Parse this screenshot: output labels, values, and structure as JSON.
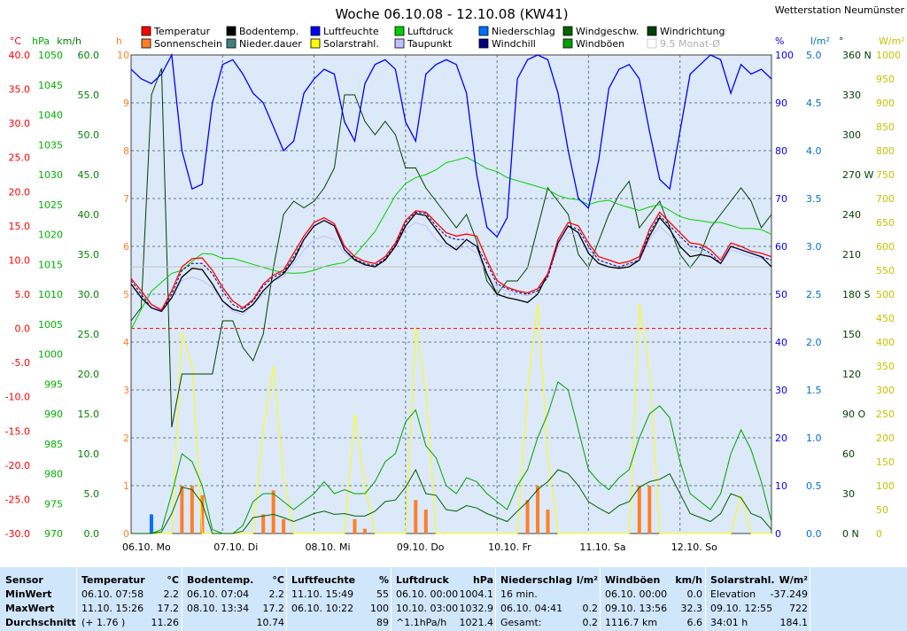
{
  "station": "Wetterstation Neumünster",
  "chart_data": {
    "type": "line",
    "title": "Woche 06.10.08 - 12.10.08 (KW41)",
    "legend": [
      {
        "name": "Temperatur",
        "color": "#ff0000"
      },
      {
        "name": "Bodentemp.",
        "color": "#000000"
      },
      {
        "name": "Luftfeuchte",
        "color": "#0000ff"
      },
      {
        "name": "Luftdruck",
        "color": "#00d000"
      },
      {
        "name": "Niederschlag",
        "color": "#0070ff"
      },
      {
        "name": "Windgeschw.",
        "color": "#006400"
      },
      {
        "name": "Windrichtung",
        "color": "#004000"
      },
      {
        "name": "Sonnenschein",
        "color": "#ff7f27"
      },
      {
        "name": "Nieder.dauer",
        "color": "#408080"
      },
      {
        "name": "Solarstrahl.",
        "color": "#ffff00"
      },
      {
        "name": "Taupunkt",
        "color": "#c0c0ff"
      },
      {
        "name": "Windchill",
        "color": "#000080"
      },
      {
        "name": "Windböen",
        "color": "#00a000"
      },
      {
        "name": "9.5 Monat-Ø",
        "color": "#c0c0c0"
      }
    ],
    "days": [
      "06.10. Mo",
      "07.10. Di",
      "08.10. Mi",
      "09.10. Do",
      "10.10. Fr",
      "11.10. Sa",
      "12.10. So"
    ],
    "axes": {
      "temp": {
        "unit": "°C",
        "range": [
          -30,
          40
        ],
        "ticks": [
          "40.0",
          "35.0",
          "30.0",
          "25.0",
          "20.0",
          "15.0",
          "10.0",
          "5.0",
          "0.0",
          "-5.0",
          "-10.0",
          "-15.0",
          "-20.0",
          "-25.0",
          "-30.0"
        ]
      },
      "pressure": {
        "unit": "hPa",
        "range": [
          970,
          1050
        ],
        "ticks": [
          "1050",
          "1045",
          "1040",
          "1035",
          "1030",
          "1025",
          "1020",
          "1015",
          "1010",
          "1005",
          "1000",
          "995",
          "990",
          "985",
          "980",
          "975",
          "970"
        ]
      },
      "wind": {
        "unit": "km/h",
        "range": [
          0,
          60
        ],
        "ticks": [
          "60.0",
          "55.0",
          "50.0",
          "45.0",
          "40.0",
          "35.0",
          "30.0",
          "25.0",
          "20.0",
          "15.0",
          "10.0",
          "5.0",
          "0.0"
        ]
      },
      "hours": {
        "unit": "h",
        "range": [
          0,
          10
        ],
        "ticks": [
          "10",
          "9",
          "8",
          "7",
          "6",
          "5",
          "4",
          "3",
          "2",
          "1",
          "0"
        ]
      },
      "humidity": {
        "unit": "%",
        "range": [
          0,
          100
        ],
        "ticks": [
          "100",
          "90",
          "80",
          "70",
          "60",
          "50",
          "40",
          "30",
          "20",
          "10",
          "0"
        ]
      },
      "rain": {
        "unit": "l/m²",
        "range": [
          0,
          5
        ],
        "ticks": [
          "5.0",
          "4.5",
          "4.0",
          "3.5",
          "3.0",
          "2.5",
          "2.0",
          "1.5",
          "1.0",
          "0.5",
          "0.0"
        ]
      },
      "direction": {
        "unit": "°",
        "range": [
          0,
          360
        ],
        "ticks": [
          "360 N",
          "330",
          "300",
          "270 W",
          "240",
          "210",
          "180 S",
          "150",
          "120",
          "90 O",
          "60",
          "30",
          "0 N"
        ]
      },
      "solar": {
        "unit": "W/m²",
        "range": [
          0,
          1000
        ],
        "ticks": [
          "1000",
          "950",
          "900",
          "850",
          "800",
          "750",
          "700",
          "650",
          "600",
          "550",
          "500",
          "450",
          "400",
          "350",
          "300",
          "250",
          "200",
          "150",
          "100",
          "50",
          "0"
        ]
      }
    },
    "series": [
      {
        "name": "Temperatur",
        "axis": "temp",
        "values": [
          7.3,
          5.5,
          3.5,
          2.7,
          5.5,
          9.0,
          10.2,
          10.3,
          8.5,
          6.0,
          4.0,
          3.0,
          4.2,
          6.5,
          7.8,
          8.5,
          11.0,
          13.5,
          15.5,
          16.2,
          15.3,
          12.0,
          10.5,
          9.8,
          9.5,
          10.5,
          12.5,
          15.8,
          17.2,
          17.0,
          15.5,
          14.0,
          13.5,
          13.8,
          13.5,
          10.0,
          7.0,
          6.0,
          5.5,
          5.2,
          5.8,
          8.0,
          13.0,
          15.5,
          15.0,
          12.5,
          10.5,
          10.0,
          9.5,
          9.8,
          10.5,
          14.5,
          17.0,
          15.5,
          14.0,
          12.5,
          12.3,
          11.5,
          10.0,
          12.5,
          12.0,
          11.3,
          11.0,
          10.5
        ]
      },
      {
        "name": "Bodentemp.",
        "axis": "temp",
        "values": [
          6.5,
          4.5,
          3.0,
          2.5,
          4.5,
          7.5,
          8.8,
          8.6,
          6.5,
          4.0,
          2.8,
          2.4,
          3.5,
          5.5,
          7.0,
          8.0,
          10.0,
          13.0,
          15.0,
          15.8,
          15.0,
          11.5,
          10.0,
          9.3,
          9.0,
          10.0,
          12.0,
          15.0,
          16.8,
          16.5,
          14.5,
          12.5,
          11.5,
          13.0,
          12.0,
          8.0,
          5.0,
          4.5,
          4.2,
          3.8,
          5.0,
          8.0,
          12.5,
          15.0,
          14.0,
          11.0,
          9.5,
          9.0,
          8.8,
          9.0,
          10.0,
          13.5,
          16.2,
          14.5,
          12.0,
          10.5,
          10.8,
          10.5,
          9.5,
          12.0,
          11.5,
          11.0,
          10.5,
          9.0
        ]
      },
      {
        "name": "Taupunkt",
        "axis": "temp",
        "values": [
          6.0,
          5.0,
          3.5,
          2.5,
          4.5,
          7.0,
          7.5,
          7.0,
          6.0,
          4.0,
          2.5,
          2.0,
          3.5,
          5.0,
          7.0,
          7.5,
          9.5,
          11.5,
          13.0,
          13.5,
          13.0,
          11.0,
          10.0,
          9.3,
          9.0,
          10.0,
          12.0,
          14.5,
          15.5,
          15.0,
          13.0,
          12.0,
          11.5,
          12.0,
          11.0,
          8.0,
          6.0,
          5.5,
          5.0,
          4.8,
          5.5,
          7.5,
          12.0,
          14.0,
          13.5,
          11.5,
          10.0,
          9.5,
          9.0,
          9.3,
          10.0,
          13.0,
          15.0,
          13.5,
          12.5,
          11.5,
          11.3,
          10.8,
          9.5,
          11.5,
          11.0,
          10.5,
          10.3,
          10.0
        ]
      },
      {
        "name": "Windchill",
        "axis": "temp",
        "values": [
          7.0,
          5.0,
          3.0,
          2.5,
          5.0,
          8.5,
          9.5,
          9.5,
          8.0,
          5.5,
          3.5,
          2.8,
          4.0,
          6.2,
          7.5,
          8.2,
          10.5,
          13.0,
          15.0,
          15.8,
          15.0,
          11.5,
          10.2,
          9.5,
          9.2,
          10.2,
          12.2,
          15.5,
          17.0,
          16.8,
          15.0,
          13.5,
          13.0,
          13.0,
          12.0,
          9.5,
          6.5,
          5.8,
          5.3,
          5.0,
          5.5,
          7.5,
          12.5,
          15.0,
          14.5,
          12.0,
          10.0,
          9.5,
          9.0,
          9.5,
          10.0,
          14.0,
          16.5,
          15.0,
          13.5,
          12.0,
          11.8,
          11.0,
          9.5,
          12.0,
          11.5,
          11.0,
          10.5,
          10.0
        ]
      },
      {
        "name": "9.5 Monat-Ø",
        "axis": "temp",
        "values": [
          9.0,
          9.0,
          9.0,
          9.0,
          9.0,
          9.0,
          9.0,
          9.0,
          9.0,
          9.0,
          9.0,
          9.0,
          9.0,
          9.0,
          9.0,
          9.0,
          9.0,
          9.0,
          9.0,
          9.0,
          9.0,
          9.0,
          9.0,
          9.0,
          9.0,
          9.0,
          9.0,
          9.0,
          9.0,
          9.0,
          9.0,
          9.0,
          9.0,
          9.0,
          9.0,
          9.0,
          9.0,
          9.0,
          9.0,
          9.0,
          9.0,
          9.0,
          9.0,
          9.0,
          9.0,
          9.0,
          9.0,
          9.0,
          9.0,
          9.0,
          9.0,
          9.0,
          9.0,
          9.0,
          9.0,
          9.0,
          9.0,
          9.0,
          9.0,
          9.0,
          9.0,
          9.0,
          9.0,
          9.0
        ]
      },
      {
        "name": "Luftfeuchte",
        "axis": "humidity",
        "values": [
          97,
          95,
          94,
          96,
          100,
          80,
          72,
          73,
          90,
          98,
          99,
          96,
          92,
          90,
          85,
          80,
          82,
          92,
          95,
          97,
          96,
          86,
          82,
          94,
          98,
          99,
          97,
          86,
          82,
          96,
          98,
          99,
          98,
          92,
          75,
          64,
          62,
          66,
          95,
          99,
          100,
          99,
          92,
          80,
          70,
          68,
          78,
          93,
          97,
          98,
          95,
          84,
          74,
          72,
          84,
          96,
          98,
          100,
          99,
          92,
          98,
          96,
          97,
          95
        ]
      },
      {
        "name": "Luftdruck",
        "axis": "pressure",
        "values": [
          1004.1,
          1007.5,
          1010.5,
          1012.0,
          1013.5,
          1014.0,
          1015.5,
          1016.8,
          1016.7,
          1016.0,
          1016.0,
          1015.5,
          1015.0,
          1014.5,
          1014.0,
          1013.6,
          1013.5,
          1013.6,
          1014.0,
          1014.6,
          1015.0,
          1015.3,
          1016.5,
          1018.5,
          1020.5,
          1023.5,
          1026.5,
          1028.5,
          1029.5,
          1030.0,
          1030.8,
          1032.0,
          1032.4,
          1032.9,
          1032.0,
          1031.0,
          1030.5,
          1029.5,
          1029.0,
          1028.5,
          1028.0,
          1027.5,
          1026.5,
          1026.0,
          1025.8,
          1025.0,
          1025.5,
          1025.7,
          1025.0,
          1024.5,
          1024.0,
          1024.6,
          1025.0,
          1024.0,
          1023.0,
          1022.5,
          1022.3,
          1022.0,
          1022.0,
          1021.5,
          1021.0,
          1021.0,
          1020.8,
          1020.0
        ]
      },
      {
        "name": "Windgeschw.",
        "axis": "wind",
        "values": [
          0,
          0,
          0,
          0.2,
          2.5,
          5.8,
          5.5,
          3.8,
          0,
          0,
          0,
          0.3,
          2.0,
          2.2,
          2.4,
          2.0,
          1.5,
          2.0,
          2.5,
          2.8,
          2.4,
          2.5,
          2.2,
          2.2,
          2.8,
          4.0,
          4.2,
          5.8,
          8.0,
          5.0,
          4.8,
          3.0,
          2.8,
          3.5,
          3.2,
          2.5,
          2.0,
          1.5,
          2.8,
          4.0,
          5.5,
          6.5,
          8.0,
          7.5,
          6.0,
          4.0,
          3.2,
          2.5,
          3.5,
          4.0,
          5.8,
          6.5,
          6.8,
          7.5,
          5.0,
          2.5,
          2.0,
          1.5,
          2.5,
          5.0,
          4.5,
          2.5,
          2.0,
          0.5
        ]
      },
      {
        "name": "Windböen",
        "axis": "wind",
        "values": [
          0,
          0,
          0,
          0.5,
          5,
          10,
          9,
          6,
          0.5,
          0,
          0,
          1,
          4,
          5,
          5,
          4,
          3,
          4,
          5,
          6.5,
          5,
          5.5,
          5,
          5,
          6.5,
          9,
          10,
          14,
          15.5,
          11,
          9.5,
          6,
          5,
          7,
          6.5,
          5,
          4,
          3,
          6,
          8,
          12,
          15,
          19,
          18,
          13,
          8,
          6.5,
          5.5,
          7,
          8,
          12,
          15,
          16,
          14.5,
          9,
          5,
          4,
          3,
          5,
          10,
          13,
          10.5,
          6.5,
          1.5
        ]
      },
      {
        "name": "Windrichtung",
        "axis": "direction",
        "values": [
          160,
          170,
          330,
          350,
          80,
          120,
          120,
          120,
          120,
          160,
          160,
          140,
          130,
          150,
          200,
          240,
          250,
          245,
          250,
          260,
          275,
          330,
          330,
          310,
          300,
          310,
          300,
          275,
          275,
          260,
          250,
          240,
          230,
          240,
          220,
          190,
          180,
          190,
          190,
          200,
          230,
          260,
          250,
          240,
          210,
          200,
          220,
          240,
          255,
          265,
          230,
          240,
          250,
          230,
          210,
          200,
          210,
          230,
          240,
          250,
          260,
          250,
          230,
          240
        ]
      },
      {
        "name": "Solarstrahl.",
        "axis": "solar",
        "values": [
          0,
          0,
          0,
          0,
          0,
          420,
          350,
          0,
          0,
          0,
          0,
          0,
          0,
          220,
          350,
          120,
          0,
          0,
          0,
          0,
          0,
          0,
          250,
          100,
          0,
          0,
          0,
          0,
          430,
          300,
          0,
          0,
          0,
          0,
          0,
          0,
          0,
          0,
          0,
          300,
          480,
          160,
          0,
          0,
          0,
          0,
          0,
          0,
          0,
          0,
          480,
          340,
          0,
          0,
          0,
          0,
          0,
          0,
          0,
          0,
          80,
          0,
          0,
          0
        ]
      },
      {
        "name": "Sonnenschein",
        "axis": "hours",
        "values": [
          0,
          0,
          0,
          0,
          0,
          1,
          1,
          0.8,
          0,
          0,
          0,
          0,
          0,
          0.4,
          0.9,
          0.3,
          0,
          0,
          0,
          0,
          0,
          0,
          0.3,
          0.1,
          0,
          0,
          0,
          0,
          0.7,
          0.5,
          0,
          0,
          0,
          0,
          0,
          0,
          0,
          0,
          0,
          0.7,
          1,
          0.5,
          0,
          0,
          0,
          0,
          0,
          0,
          0,
          0,
          1,
          1,
          0,
          0,
          0,
          0,
          0,
          0,
          0,
          0,
          0,
          0,
          0,
          0
        ]
      },
      {
        "name": "Niederschlag",
        "axis": "rain",
        "values": [
          0,
          0,
          0.2,
          0,
          0,
          0,
          0,
          0,
          0,
          0,
          0,
          0,
          0,
          0,
          0,
          0,
          0,
          0,
          0,
          0,
          0,
          0,
          0,
          0,
          0,
          0,
          0,
          0,
          0,
          0,
          0,
          0,
          0,
          0,
          0,
          0,
          0,
          0,
          0,
          0,
          0,
          0,
          0,
          0,
          0,
          0,
          0,
          0,
          0,
          0,
          0,
          0,
          0,
          0,
          0,
          0,
          0,
          0,
          0,
          0,
          0,
          0,
          0,
          0
        ]
      }
    ]
  },
  "table": {
    "rowlabels": {
      "h": "Sensor",
      "min": "MinWert",
      "max": "MaxWert",
      "avg": "Durchschnitt"
    },
    "cols": [
      {
        "h": "Temperatur",
        "u": "°C",
        "min_t": "06.10.  07:58",
        "min_v": "2.2",
        "max_t": "11.10.  15:26",
        "max_v": "17.2",
        "avg_t": "(+ 1.76 )",
        "avg_v": "11.26"
      },
      {
        "h": "Bodentemp.",
        "u": "°C",
        "min_t": "06.10.  07:04",
        "min_v": "2.2",
        "max_t": "08.10.  13:34",
        "max_v": "17.2",
        "avg_t": "",
        "avg_v": "10.74"
      },
      {
        "h": "Luftfeuchte",
        "u": "%",
        "min_t": "11.10.  15:49",
        "min_v": "55",
        "max_t": "06.10.  10:22",
        "max_v": "100",
        "avg_t": "",
        "avg_v": "89"
      },
      {
        "h": "Luftdruck",
        "u": "hPa",
        "min_t": "06.10.  00:00",
        "min_v": "1004.1",
        "max_t": "10.10.  03:00",
        "max_v": "1032.9",
        "avg_t": "^1.1hPa/h",
        "avg_v": "1021.4"
      },
      {
        "h": "Niederschlag",
        "u": "l/m²",
        "min_t": "16 min.",
        "min_v": "",
        "max_t": "06.10.  04:41",
        "max_v": "0.2",
        "avg_t": "Gesamt:",
        "avg_v": "0.2"
      },
      {
        "h": "Windböen",
        "u": "km/h",
        "min_t": "06.10.  00:00",
        "min_v": "0.0",
        "max_t": "09.10.  13:56",
        "max_v": "32.3",
        "avg_t": "1116.7 km",
        "avg_v": "6.6"
      },
      {
        "h": "Solarstrahl.",
        "u": "W/m²",
        "min_t": "Elevation",
        "min_v": "-37.249",
        "max_t": "09.10.  12:55",
        "max_v": "722",
        "avg_t": "34:01 h",
        "avg_v": "184.1"
      }
    ]
  }
}
